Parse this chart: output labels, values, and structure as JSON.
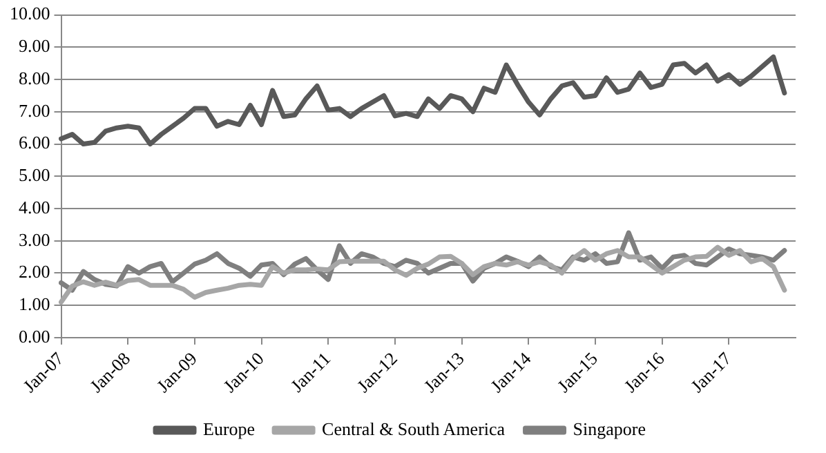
{
  "chart_data": {
    "type": "line",
    "categories": [
      "Jan-07",
      null,
      null,
      null,
      null,
      null,
      "Jan-08",
      null,
      null,
      null,
      null,
      null,
      "Jan-09",
      null,
      null,
      null,
      null,
      null,
      "Jan-10",
      null,
      null,
      null,
      null,
      null,
      "Jan-11",
      null,
      null,
      null,
      null,
      null,
      "Jan-12",
      null,
      null,
      null,
      null,
      null,
      "Jan-13",
      null,
      null,
      null,
      null,
      null,
      "Jan-14",
      null,
      null,
      null,
      null,
      null,
      "Jan-15",
      null,
      null,
      null,
      null,
      null,
      "Jan-16",
      null,
      null,
      null,
      null,
      null,
      "Jan-17",
      null,
      null,
      null,
      null,
      null,
      null
    ],
    "series": [
      {
        "name": "Europe",
        "color": "#595959",
        "values": [
          6.16,
          6.3,
          6.0,
          6.05,
          6.4,
          6.5,
          6.55,
          6.5,
          6.0,
          6.3,
          6.55,
          6.8,
          7.1,
          7.1,
          6.55,
          6.7,
          6.6,
          7.2,
          6.6,
          7.66,
          6.85,
          6.9,
          7.4,
          7.8,
          7.05,
          7.1,
          6.85,
          7.1,
          7.3,
          7.5,
          6.87,
          6.95,
          6.85,
          7.4,
          7.1,
          7.5,
          7.4,
          7.0,
          7.73,
          7.6,
          8.45,
          7.85,
          7.3,
          6.9,
          7.4,
          7.8,
          7.9,
          7.45,
          7.5,
          8.05,
          7.6,
          7.7,
          8.2,
          7.75,
          7.85,
          8.45,
          8.5,
          8.2,
          8.45,
          7.95,
          8.15,
          7.85,
          8.1,
          8.4,
          8.7,
          7.58,
          null
        ]
      },
      {
        "name": "Central & South America",
        "color": "#a6a6a6",
        "values": [
          1.1,
          1.6,
          1.73,
          1.62,
          1.72,
          1.62,
          1.77,
          1.8,
          1.62,
          1.62,
          1.62,
          1.5,
          1.25,
          1.4,
          1.47,
          1.53,
          1.62,
          1.65,
          1.62,
          2.2,
          2.0,
          2.1,
          2.1,
          2.13,
          2.1,
          2.35,
          2.37,
          2.37,
          2.37,
          2.37,
          2.1,
          1.93,
          2.15,
          2.28,
          2.5,
          2.52,
          2.3,
          1.95,
          2.2,
          2.3,
          2.25,
          2.35,
          2.25,
          2.35,
          2.25,
          2.0,
          2.45,
          2.7,
          2.4,
          2.6,
          2.7,
          2.5,
          2.5,
          2.25,
          2.0,
          2.2,
          2.4,
          2.5,
          2.52,
          2.8,
          2.55,
          2.7,
          2.35,
          2.45,
          2.2,
          1.47,
          null
        ]
      },
      {
        "name": "Singapore",
        "color": "#7f7f7f",
        "values": [
          1.7,
          1.47,
          2.05,
          1.8,
          1.65,
          1.6,
          2.2,
          2.0,
          2.2,
          2.3,
          1.73,
          2.0,
          2.28,
          2.4,
          2.6,
          2.3,
          2.15,
          1.9,
          2.25,
          2.3,
          1.95,
          2.28,
          2.45,
          2.1,
          1.8,
          2.85,
          2.3,
          2.6,
          2.5,
          2.3,
          2.2,
          2.4,
          2.3,
          2.0,
          2.15,
          2.3,
          2.3,
          1.75,
          2.15,
          2.3,
          2.5,
          2.37,
          2.2,
          2.5,
          2.2,
          2.1,
          2.5,
          2.4,
          2.6,
          2.3,
          2.35,
          3.25,
          2.4,
          2.5,
          2.15,
          2.5,
          2.55,
          2.3,
          2.25,
          2.5,
          2.75,
          2.6,
          2.55,
          2.5,
          2.4,
          2.7,
          null
        ]
      }
    ],
    "ylim": [
      0,
      10
    ],
    "yticks": [
      {
        "value": 0,
        "label": "0.00"
      },
      {
        "value": 1,
        "label": "1.00"
      },
      {
        "value": 2,
        "label": "2.00"
      },
      {
        "value": 3,
        "label": "3.00"
      },
      {
        "value": 4,
        "label": "4.00"
      },
      {
        "value": 5,
        "label": "5.00"
      },
      {
        "value": 6,
        "label": "6.00"
      },
      {
        "value": 7,
        "label": "7.00"
      },
      {
        "value": 8,
        "label": "8.00"
      },
      {
        "value": 9,
        "label": "9.00"
      },
      {
        "value": 10,
        "label": "10.00"
      }
    ],
    "grid": "y",
    "legend": "bottom",
    "marker": "none",
    "line_style": "solid"
  }
}
